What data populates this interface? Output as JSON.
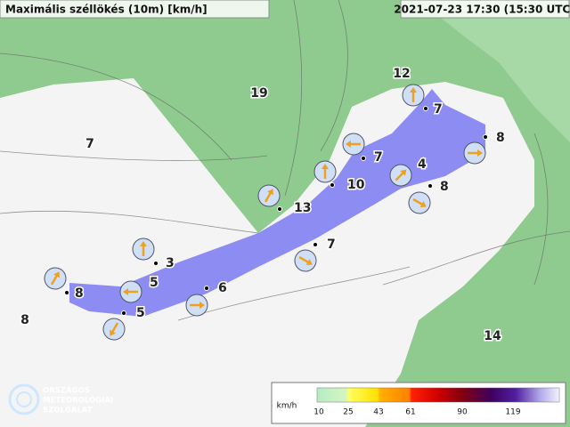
{
  "header": {
    "title": "Maximális széllökés (10m) [km/h]",
    "time": "2021-07-23 17:30 (15:30 UTC)"
  },
  "stations": [
    7,
    8,
    7,
    4,
    10,
    8,
    13,
    7,
    3,
    5,
    8,
    6,
    5
  ],
  "field_values": [
    12,
    19,
    7,
    8,
    14
  ],
  "legend": {
    "unit": "km/h",
    "ticks": [
      10,
      25,
      43,
      61,
      90,
      119
    ]
  },
  "logo": [
    "ORSZÁGOS",
    "METEOROLÓGIAI",
    "SZOLGÁLAT"
  ]
}
